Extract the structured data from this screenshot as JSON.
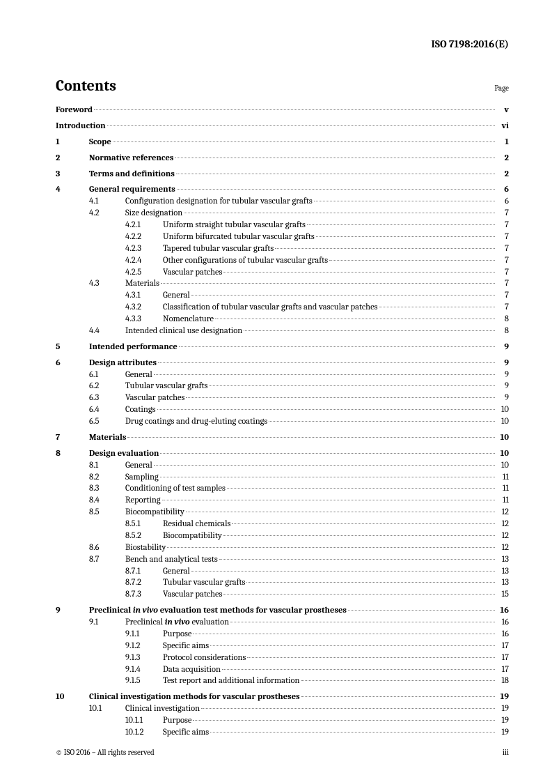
{
  "doc": {
    "id": "ISO 7198:2016(E)",
    "contents_label": "Contents",
    "page_label": "Page",
    "copyright": "© ISO 2016 – All rights reserved",
    "page_number": "iii"
  },
  "toc": [
    {
      "type": "row",
      "level": 0,
      "bold": true,
      "num": "",
      "title": "Foreword",
      "page": "v"
    },
    {
      "type": "spacer",
      "size": "sm"
    },
    {
      "type": "row",
      "level": 0,
      "bold": true,
      "num": "",
      "title": "Introduction",
      "page": "vi"
    },
    {
      "type": "spacer",
      "size": "sm"
    },
    {
      "type": "row",
      "level": 1,
      "bold": true,
      "num": "1",
      "title": "Scope",
      "page": "1"
    },
    {
      "type": "spacer",
      "size": "sm"
    },
    {
      "type": "row",
      "level": 1,
      "bold": true,
      "num": "2",
      "title": "Normative references",
      "page": "2"
    },
    {
      "type": "spacer",
      "size": "sm"
    },
    {
      "type": "row",
      "level": 1,
      "bold": true,
      "num": "3",
      "title": "Terms and definitions",
      "page": "2"
    },
    {
      "type": "spacer",
      "size": "sm"
    },
    {
      "type": "row",
      "level": 1,
      "bold": true,
      "num": "4",
      "title": "General requirements",
      "page": "6"
    },
    {
      "type": "row",
      "level": 2,
      "num": "4.1",
      "title": "Configuration designation for tubular vascular grafts",
      "page": "6"
    },
    {
      "type": "row",
      "level": 2,
      "num": "4.2",
      "title": "Size designation",
      "page": "7"
    },
    {
      "type": "row",
      "level": 3,
      "num": "4.2.1",
      "title": "Uniform straight tubular vascular grafts",
      "page": "7"
    },
    {
      "type": "row",
      "level": 3,
      "num": "4.2.2",
      "title": "Uniform bifurcated tubular vascular grafts",
      "page": "7"
    },
    {
      "type": "row",
      "level": 3,
      "num": "4.2.3",
      "title": "Tapered tubular vascular grafts",
      "page": "7"
    },
    {
      "type": "row",
      "level": 3,
      "num": "4.2.4",
      "title": "Other configurations of tubular vascular grafts",
      "page": "7"
    },
    {
      "type": "row",
      "level": 3,
      "num": "4.2.5",
      "title": "Vascular patches",
      "page": "7"
    },
    {
      "type": "row",
      "level": 2,
      "num": "4.3",
      "title": "Materials",
      "page": "7"
    },
    {
      "type": "row",
      "level": 3,
      "num": "4.3.1",
      "title": "General",
      "page": "7"
    },
    {
      "type": "row",
      "level": 3,
      "num": "4.3.2",
      "title": "Classification of tubular vascular grafts and vascular patches",
      "page": "7"
    },
    {
      "type": "row",
      "level": 3,
      "num": "4.3.3",
      "title": "Nomenclature",
      "page": "8"
    },
    {
      "type": "row",
      "level": 2,
      "num": "4.4",
      "title": "Intended clinical use designation",
      "page": "8"
    },
    {
      "type": "spacer",
      "size": "sm"
    },
    {
      "type": "row",
      "level": 1,
      "bold": true,
      "num": "5",
      "title": "Intended performance",
      "page": "9"
    },
    {
      "type": "spacer",
      "size": "sm"
    },
    {
      "type": "row",
      "level": 1,
      "bold": true,
      "num": "6",
      "title": "Design attributes",
      "page": "9"
    },
    {
      "type": "row",
      "level": 2,
      "num": "6.1",
      "title": "General",
      "page": "9"
    },
    {
      "type": "row",
      "level": 2,
      "num": "6.2",
      "title": "Tubular vascular grafts",
      "page": "9"
    },
    {
      "type": "row",
      "level": 2,
      "num": "6.3",
      "title": "Vascular patches",
      "page": "9"
    },
    {
      "type": "row",
      "level": 2,
      "num": "6.4",
      "title": "Coatings",
      "page": "10"
    },
    {
      "type": "row",
      "level": 2,
      "num": "6.5",
      "title": "Drug coatings and drug-eluting coatings",
      "page": "10"
    },
    {
      "type": "spacer",
      "size": "sm"
    },
    {
      "type": "row",
      "level": 1,
      "bold": true,
      "num": "7",
      "title": "Materials",
      "page": "10"
    },
    {
      "type": "spacer",
      "size": "sm"
    },
    {
      "type": "row",
      "level": 1,
      "bold": true,
      "num": "8",
      "title": "Design evaluation",
      "page": "10"
    },
    {
      "type": "row",
      "level": 2,
      "num": "8.1",
      "title": "General",
      "page": "10"
    },
    {
      "type": "row",
      "level": 2,
      "num": "8.2",
      "title": "Sampling",
      "page": "11"
    },
    {
      "type": "row",
      "level": 2,
      "num": "8.3",
      "title": "Conditioning of test samples",
      "page": "11"
    },
    {
      "type": "row",
      "level": 2,
      "num": "8.4",
      "title": "Reporting",
      "page": "11"
    },
    {
      "type": "row",
      "level": 2,
      "num": "8.5",
      "title": "Biocompatibility",
      "page": "12"
    },
    {
      "type": "row",
      "level": 3,
      "num": "8.5.1",
      "title": "Residual chemicals",
      "page": "12"
    },
    {
      "type": "row",
      "level": 3,
      "num": "8.5.2",
      "title": "Biocompatibility",
      "page": "12"
    },
    {
      "type": "row",
      "level": 2,
      "num": "8.6",
      "title": "Biostability",
      "page": "12"
    },
    {
      "type": "row",
      "level": 2,
      "num": "8.7",
      "title": "Bench and analytical tests",
      "page": "13"
    },
    {
      "type": "row",
      "level": 3,
      "num": "8.7.1",
      "title": "General",
      "page": "13"
    },
    {
      "type": "row",
      "level": 3,
      "num": "8.7.2",
      "title": "Tubular vascular grafts",
      "page": "13"
    },
    {
      "type": "row",
      "level": 3,
      "num": "8.7.3",
      "title": "Vascular patches",
      "page": "15"
    },
    {
      "type": "spacer",
      "size": "sm"
    },
    {
      "type": "row",
      "level": 1,
      "bold": true,
      "num": "9",
      "title_html": "Preclinical <span class=\"italic\">in vivo</span> evaluation test methods for vascular prostheses",
      "page": "16"
    },
    {
      "type": "row",
      "level": 2,
      "num": "9.1",
      "title_html": "Preclinical <span class=\"italic bold\">in vivo</span> evaluation",
      "page": "16"
    },
    {
      "type": "row",
      "level": 3,
      "num": "9.1.1",
      "title": "Purpose",
      "page": "16"
    },
    {
      "type": "row",
      "level": 3,
      "num": "9.1.2",
      "title": "Specific aims",
      "page": "17"
    },
    {
      "type": "row",
      "level": 3,
      "num": "9.1.3",
      "title": "Protocol considerations",
      "page": "17"
    },
    {
      "type": "row",
      "level": 3,
      "num": "9.1.4",
      "title": "Data acquisition",
      "page": "17"
    },
    {
      "type": "row",
      "level": 3,
      "num": "9.1.5",
      "title": "Test report and additional information",
      "page": "18"
    },
    {
      "type": "spacer",
      "size": "sm"
    },
    {
      "type": "row",
      "level": 1,
      "bold": true,
      "num": "10",
      "title": "Clinical investigation methods for vascular prostheses",
      "page": "19"
    },
    {
      "type": "row",
      "level": 2,
      "num": "10.1",
      "title": "Clinical investigation",
      "page": "19"
    },
    {
      "type": "row",
      "level": 3,
      "num": "10.1.1",
      "title": "Purpose",
      "page": "19"
    },
    {
      "type": "row",
      "level": 3,
      "num": "10.1.2",
      "title": "Specific aims",
      "page": "19"
    }
  ]
}
